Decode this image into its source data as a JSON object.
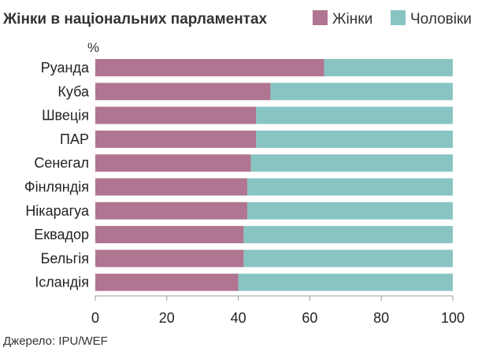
{
  "chart_data": {
    "type": "bar",
    "orientation": "horizontal",
    "stacked": true,
    "title": "Жінки в національних парламентах",
    "unit_label": "%",
    "categories": [
      "Руанда",
      "Куба",
      "Швеція",
      "ПАР",
      "Сенегал",
      "Фінляндія",
      "Нікарагуа",
      "Еквадор",
      "Бельгія",
      "Ісландія"
    ],
    "series": [
      {
        "name": "Жінки",
        "color": "#b07591",
        "values": [
          64,
          49,
          45,
          45,
          43.5,
          42.5,
          42.5,
          41.5,
          41.5,
          40
        ]
      },
      {
        "name": "Чоловіки",
        "color": "#88c5c2",
        "values": [
          36,
          51,
          55,
          55,
          56.5,
          57.5,
          57.5,
          58.5,
          58.5,
          60
        ]
      }
    ],
    "xlim": [
      0,
      100
    ],
    "xticks": [
      0,
      20,
      40,
      60,
      80,
      100
    ],
    "xtick_labels": [
      "0",
      "20",
      "40",
      "60",
      "80",
      "100"
    ],
    "grid": false,
    "legend": "top-right",
    "source": "Джерело:  IPU/WEF"
  }
}
